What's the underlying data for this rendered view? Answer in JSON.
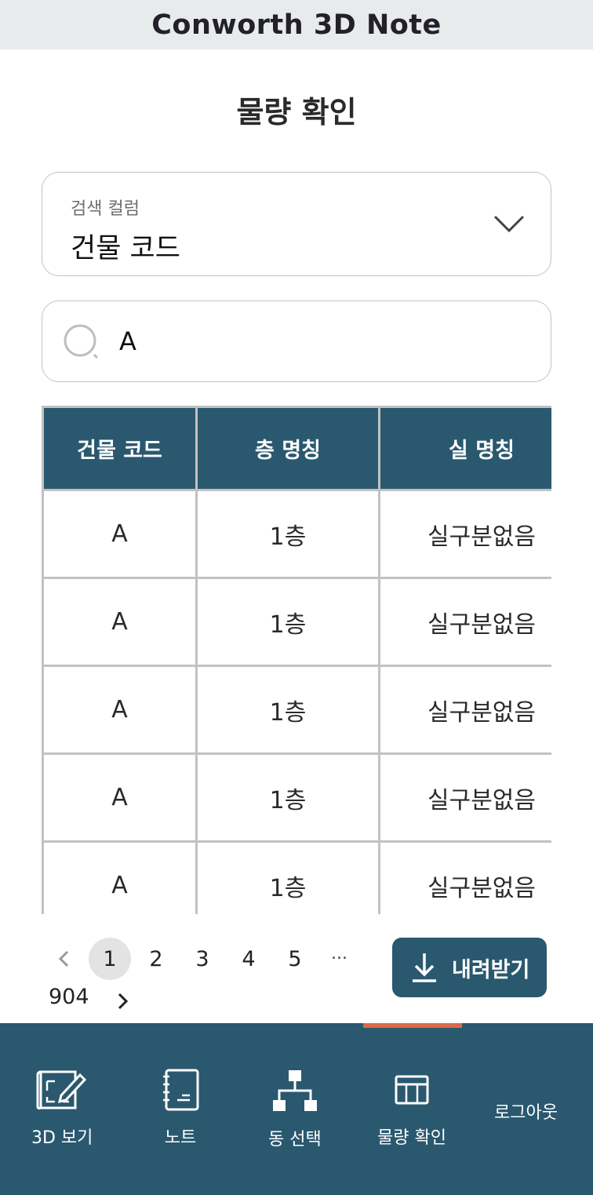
{
  "header": {
    "app_title": "Conworth 3D Note"
  },
  "page": {
    "title": "물량 확인"
  },
  "column_select": {
    "label": "검색 컬럼",
    "value": "건물 코드"
  },
  "search": {
    "value": "A",
    "placeholder": ""
  },
  "table": {
    "columns": [
      "건물 코드",
      "층 명칭",
      "실 명칭"
    ],
    "rows": [
      [
        "A",
        "1층",
        "실구분없음"
      ],
      [
        "A",
        "1층",
        "실구분없음"
      ],
      [
        "A",
        "1층",
        "실구분없음"
      ],
      [
        "A",
        "1층",
        "실구분없음"
      ],
      [
        "A",
        "1층",
        "실구분없음"
      ]
    ]
  },
  "pagination": {
    "pages": [
      "1",
      "2",
      "3",
      "4",
      "5"
    ],
    "current": "1",
    "ellipsis": "...",
    "last_page": "904"
  },
  "download": {
    "label": "내려받기"
  },
  "bottom_nav": {
    "items": [
      {
        "label": "3D 보기",
        "icon": "blueprint-edit-icon"
      },
      {
        "label": "노트",
        "icon": "notebook-icon"
      },
      {
        "label": "동 선택",
        "icon": "hierarchy-icon"
      },
      {
        "label": "물량 확인",
        "icon": "table-icon"
      }
    ],
    "logout_label": "로그아웃",
    "active_index": 3
  },
  "colors": {
    "primary": "#2a586f",
    "accent": "#d9694a",
    "topbar": "#e8ebec"
  }
}
